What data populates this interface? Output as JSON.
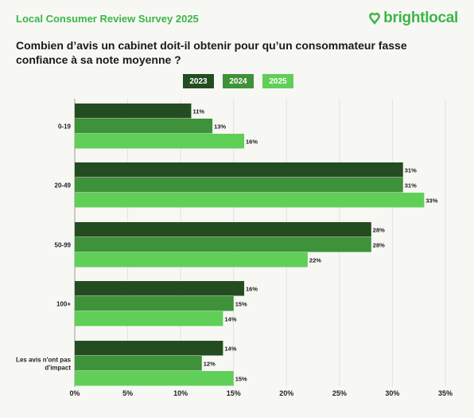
{
  "header": {
    "survey_title": "Local Consumer Review Survey 2025",
    "brand_name": "brightlocal",
    "brand_icon": "heart-pin-icon",
    "question": "Combien d’avis un cabinet doit-il obtenir pour qu’un consommateur fasse confiance à sa note moyenne ?"
  },
  "colors": {
    "series_2023": "#234d20",
    "series_2024": "#3e9239",
    "series_2025": "#5fcf57",
    "brand": "#3cb648"
  },
  "chart_data": {
    "type": "bar",
    "orientation": "horizontal",
    "categories": [
      "0-19",
      "20-49",
      "50-99",
      "100+",
      "Les avis n'ont pas d'impact"
    ],
    "series": [
      {
        "name": "2023",
        "values": [
          11,
          31,
          28,
          16,
          14
        ]
      },
      {
        "name": "2024",
        "values": [
          13,
          31,
          28,
          15,
          12
        ]
      },
      {
        "name": "2025",
        "values": [
          16,
          33,
          22,
          14,
          15
        ]
      }
    ],
    "value_suffix": "%",
    "xlim": [
      0,
      35
    ],
    "xticks": [
      "0%",
      "5%",
      "10%",
      "15%",
      "20%",
      "25%",
      "30%",
      "35%"
    ],
    "grid": "vertical",
    "legend_position": "top"
  }
}
